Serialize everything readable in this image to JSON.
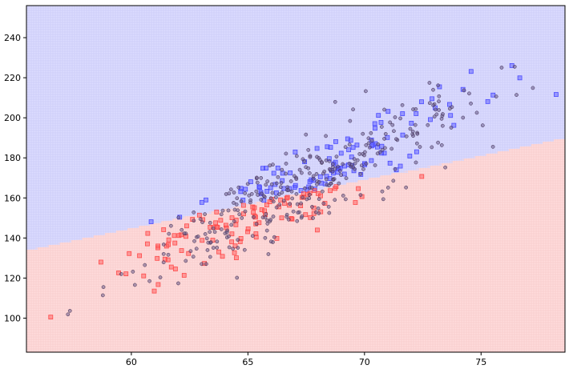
{
  "chart_data": {
    "type": "scatter",
    "title": "",
    "xlabel": "",
    "ylabel": "",
    "xlim": [
      55.5,
      78.6
    ],
    "ylim": [
      83,
      256
    ],
    "x_ticks": [
      60,
      65,
      70,
      75
    ],
    "y_ticks": [
      100,
      120,
      140,
      160,
      180,
      200,
      220,
      240
    ],
    "decision_boundary": {
      "description": "linear boundary, blue region above, red region below",
      "points": [
        [
          55.5,
          134
        ],
        [
          78.6,
          190
        ]
      ]
    },
    "region_colors": {
      "upper": "#dcdcff",
      "lower": "#ffdcdc",
      "upper_grid": "#c4c4f4",
      "lower_grid": "#f4c4c4"
    },
    "series": [
      {
        "marker": "square",
        "color": "#4b4bff",
        "seed": 7,
        "count": 110,
        "region": "upper"
      },
      {
        "marker": "square",
        "color": "#ff4b4b",
        "seed": 13,
        "count": 110,
        "region": "lower"
      },
      {
        "marker": "circle",
        "color": "#6a5a8a",
        "seed": 29,
        "count": 330,
        "region": "mixed"
      }
    ],
    "cloud": {
      "x_mean": 67.0,
      "x_sd": 3.6,
      "slope": 5.6,
      "intercept_at_mean": 164,
      "noise_sd": 10
    }
  },
  "colors": {
    "axis": "#000000",
    "background": "#ffffff"
  }
}
